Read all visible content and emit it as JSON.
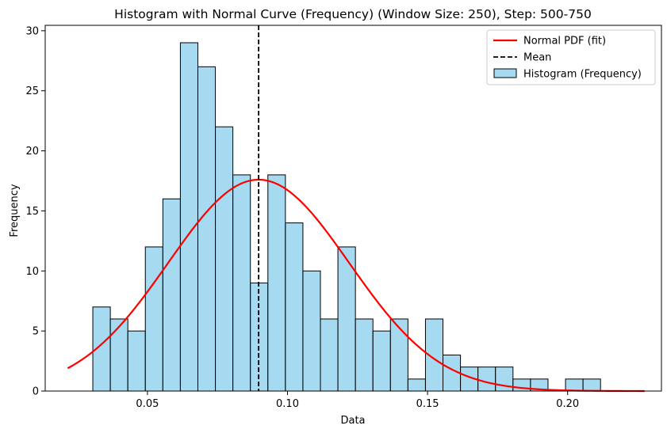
{
  "chart_data": {
    "type": "bar",
    "title": "Histogram with Normal Curve (Frequency) (Window Size: 250), Step: 500-750",
    "xlabel": "Data",
    "ylabel": "Frequency",
    "xlim": [
      0.0135,
      0.2335
    ],
    "ylim": [
      0,
      30.45
    ],
    "xticks": [
      0.05,
      0.1,
      0.15,
      0.2
    ],
    "xtick_labels": [
      "0.05",
      "0.10",
      "0.15",
      "0.20"
    ],
    "yticks": [
      0,
      5,
      10,
      15,
      20,
      25,
      30
    ],
    "ytick_labels": [
      "0",
      "5",
      "10",
      "15",
      "20",
      "25",
      "30"
    ],
    "grid": false,
    "legend_position": "top-right",
    "histogram": {
      "name": "Histogram (Frequency)",
      "color": "#87CEEB",
      "edge_color": "#000000",
      "bin_start": 0.0305,
      "bin_width": 0.00625,
      "counts": [
        7,
        6,
        5,
        12,
        16,
        29,
        27,
        22,
        18,
        9,
        18,
        14,
        10,
        6,
        12,
        6,
        5,
        6,
        1,
        6,
        3,
        2,
        2,
        2,
        1,
        1,
        0,
        1,
        1
      ]
    },
    "normal_fit": {
      "name": "Normal PDF (fit)",
      "color": "#FF0000",
      "mean": 0.0897,
      "std": 0.0323,
      "peak_frequency": 17.6,
      "x_range": [
        0.0215,
        0.2275
      ]
    },
    "mean_line": {
      "name": "Mean",
      "x": 0.0897,
      "color": "#000000"
    }
  }
}
